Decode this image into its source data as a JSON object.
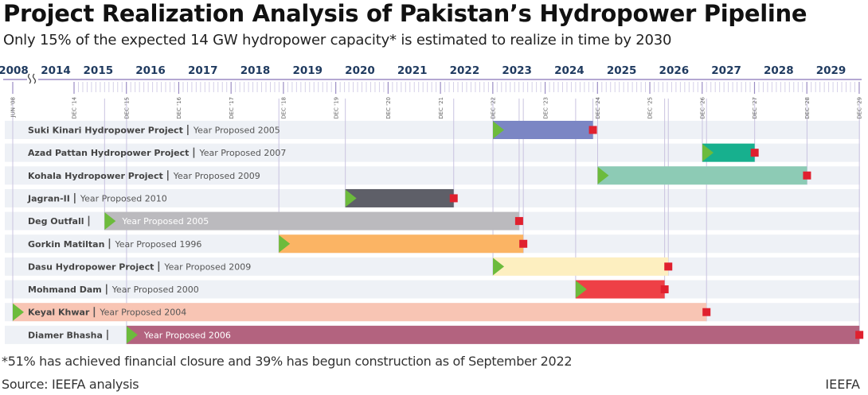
{
  "header": {
    "title": "Project Realization Analysis of Pakistan’s Hydropower Pipeline",
    "subtitle": "Only 15% of the expected 14 GW hydropower capacity* is estimated to realize in time by 2030"
  },
  "footer": {
    "footnote": "*51% has achieved financial closure and 39% has begun construction as of September 2022",
    "source": "Source: IEEFA analysis",
    "brand": "IEEFA"
  },
  "colors": {
    "row_background": "#eef1f6",
    "axis_line": "#9b8cc4",
    "drop_line": "#c9c3e0",
    "start_marker": "#6cbb3c",
    "end_marker": "#e0202e",
    "year_label": "#1f3a5f"
  },
  "chart_data": {
    "type": "gantt",
    "title": "Project Realization Analysis of Pakistan’s Hydropower Pipeline",
    "subtitle": "Only 15% of the expected 14 GW hydropower capacity* is estimated to realize in time by 2030",
    "x_axis": {
      "unit": "year",
      "break_after": "2008",
      "range": [
        2014.0,
        2030.0
      ],
      "year_labels": [
        "2008",
        "2014",
        "2015",
        "2016",
        "2017",
        "2018",
        "2019",
        "2020",
        "2021",
        "2022",
        "2023",
        "2024",
        "2025",
        "2026",
        "2027",
        "2028",
        "2029"
      ],
      "marker_labels": [
        {
          "label": "JUN '08",
          "date": 2008.42
        },
        {
          "label": "DEC '14",
          "date": 2014.92
        },
        {
          "label": "DEC '15",
          "date": 2015.92
        },
        {
          "label": "DEC '16",
          "date": 2016.92
        },
        {
          "label": "DEC '17",
          "date": 2017.92
        },
        {
          "label": "DEC '18",
          "date": 2018.92
        },
        {
          "label": "DEC '19",
          "date": 2019.92
        },
        {
          "label": "DEC '20",
          "date": 2020.92
        },
        {
          "label": "DEC '21",
          "date": 2021.92
        },
        {
          "label": "DEC '22",
          "date": 2022.92
        },
        {
          "label": "DEC '23",
          "date": 2023.92
        },
        {
          "label": "DEC '24",
          "date": 2024.92
        },
        {
          "label": "DEC '25",
          "date": 2025.92
        },
        {
          "label": "DEC '26",
          "date": 2026.92
        },
        {
          "label": "DEC '27",
          "date": 2027.92
        },
        {
          "label": "DEC '28",
          "date": 2028.92
        },
        {
          "label": "DEC '29",
          "date": 2029.92
        }
      ]
    },
    "projects": [
      {
        "name": "Suki Kinari Hydropower Project",
        "proposed": "Year Proposed 2005",
        "start": 2022.92,
        "end": 2024.83,
        "color": "#7b86c4",
        "label_inside": false
      },
      {
        "name": "Azad Pattan Hydropower Project",
        "proposed": "Year Proposed 2007",
        "start": 2026.92,
        "end": 2027.92,
        "color": "#17b08e",
        "label_inside": false
      },
      {
        "name": "Kohala Hydropower Project",
        "proposed": "Year Proposed 2009",
        "start": 2024.92,
        "end": 2028.92,
        "color": "#8dcbb5",
        "label_inside": false
      },
      {
        "name": "Jagran-II",
        "proposed": "Year Proposed 2010",
        "start": 2020.1,
        "end": 2022.17,
        "color": "#5e5f68",
        "label_inside": false
      },
      {
        "name": "Deg Outfall",
        "proposed": "Year Proposed 2005",
        "start": 2015.5,
        "end": 2023.42,
        "color": "#bbbabe",
        "label_inside": true
      },
      {
        "name": "Gorkin Matiltan",
        "proposed": "Year Proposed 1996",
        "start": 2018.83,
        "end": 2023.5,
        "color": "#fbb464",
        "label_inside": false
      },
      {
        "name": "Dasu Hydropower Project",
        "proposed": "Year Proposed 2009",
        "start": 2022.92,
        "end": 2026.27,
        "color": "#fdefc0",
        "label_inside": false
      },
      {
        "name": "Mohmand Dam",
        "proposed": "Year Proposed 2000",
        "start": 2024.5,
        "end": 2026.2,
        "color": "#ee4046",
        "label_inside": false
      },
      {
        "name": "Keyal Khwar",
        "proposed": "Year Proposed 2004",
        "start": 2008.42,
        "end": 2027.0,
        "color": "#f8c5b4",
        "label_inside": false
      },
      {
        "name": "Diamer Bhasha",
        "proposed": "Year Proposed 2006",
        "start": 2015.92,
        "end": 2029.92,
        "color": "#b3637f",
        "label_inside": true
      }
    ]
  }
}
